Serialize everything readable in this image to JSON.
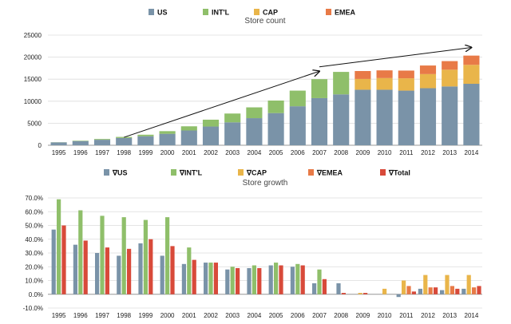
{
  "chart_data": [
    {
      "type": "bar",
      "stacked": true,
      "title": "Store count",
      "legend_placement": "top",
      "grid": true,
      "categories": [
        "1995",
        "1996",
        "1997",
        "1998",
        "1999",
        "2000",
        "2001",
        "2002",
        "2003",
        "2004",
        "2005",
        "2006",
        "2007",
        "2008",
        "2009",
        "2010",
        "2011",
        "2012",
        "2013",
        "2014"
      ],
      "ylim": [
        0,
        25000
      ],
      "yticks": [
        0,
        5000,
        10000,
        15000,
        20000,
        25000
      ],
      "series": [
        {
          "name": "US",
          "color": "#7a93a8",
          "values": [
            650,
            950,
            1250,
            1650,
            2050,
            2600,
            3350,
            4250,
            5200,
            6150,
            7300,
            8850,
            10700,
            11550,
            12600,
            12600,
            12400,
            12950,
            13350,
            13950
          ]
        },
        {
          "name": "INT'L",
          "color": "#8fbf6a",
          "values": [
            30,
            90,
            170,
            240,
            340,
            600,
            950,
            1550,
            2000,
            2450,
            2850,
            3550,
            4300,
            5100,
            0,
            0,
            0,
            0,
            0,
            0
          ]
        },
        {
          "name": "CAP",
          "color": "#e9b54a",
          "values": [
            0,
            0,
            0,
            0,
            0,
            0,
            0,
            0,
            0,
            0,
            0,
            0,
            0,
            0,
            2450,
            2650,
            2800,
            3200,
            3800,
            4300
          ]
        },
        {
          "name": "EMEA",
          "color": "#e87a47",
          "values": [
            0,
            0,
            0,
            0,
            0,
            0,
            0,
            0,
            0,
            0,
            0,
            0,
            0,
            0,
            1800,
            1750,
            1750,
            1950,
            1950,
            2100
          ]
        }
      ],
      "annotations": [
        {
          "type": "arrow",
          "from": [
            1998,
            1800
          ],
          "to": [
            2007,
            16800
          ]
        },
        {
          "type": "arrow",
          "from": [
            2007,
            17800
          ],
          "to": [
            2014,
            22200
          ]
        }
      ]
    },
    {
      "type": "bar",
      "title": "Store growth",
      "legend_placement": "top",
      "grid": true,
      "categories": [
        "1995",
        "1996",
        "1997",
        "1998",
        "1999",
        "2000",
        "2001",
        "2002",
        "2003",
        "2004",
        "2005",
        "2006",
        "2007",
        "2008",
        "2009",
        "2010",
        "2011",
        "2012",
        "2013",
        "2014"
      ],
      "ylim": [
        -10,
        70
      ],
      "yticks": [
        "-10.0%",
        "0.0%",
        "10.0%",
        "20.0%",
        "30.0%",
        "40.0%",
        "50.0%",
        "60.0%",
        "70.0%"
      ],
      "y_unit": "%",
      "series": [
        {
          "name": "∇US",
          "color": "#7a93a8",
          "values": [
            47,
            36,
            30,
            28,
            37,
            28,
            22,
            23,
            18,
            19,
            21,
            20,
            8,
            8,
            0,
            0,
            -2,
            4,
            3,
            4
          ]
        },
        {
          "name": "∇INT'L",
          "color": "#8fbf6a",
          "values": [
            69,
            61,
            57,
            56,
            54,
            56,
            34,
            23,
            20,
            21,
            23,
            22,
            18,
            0,
            0,
            0,
            0,
            0,
            0,
            0
          ]
        },
        {
          "name": "∇CAP",
          "color": "#e9b54a",
          "values": [
            0,
            0,
            0,
            0,
            0,
            0,
            0,
            0,
            0,
            0,
            0,
            0,
            0,
            0,
            1,
            4,
            10,
            14,
            14,
            14
          ]
        },
        {
          "name": "∇EMEA",
          "color": "#e87a47",
          "values": [
            0,
            0,
            0,
            0,
            0,
            0,
            0,
            0,
            0,
            0,
            0,
            0,
            0,
            0,
            0,
            0,
            6,
            5,
            6,
            5
          ]
        },
        {
          "name": "∇Total",
          "color": "#d84a3a",
          "values": [
            50,
            39,
            34,
            33,
            40,
            35,
            25,
            23,
            19,
            19,
            21,
            21,
            11,
            1,
            1,
            0,
            2,
            5,
            4,
            6
          ]
        }
      ]
    }
  ]
}
